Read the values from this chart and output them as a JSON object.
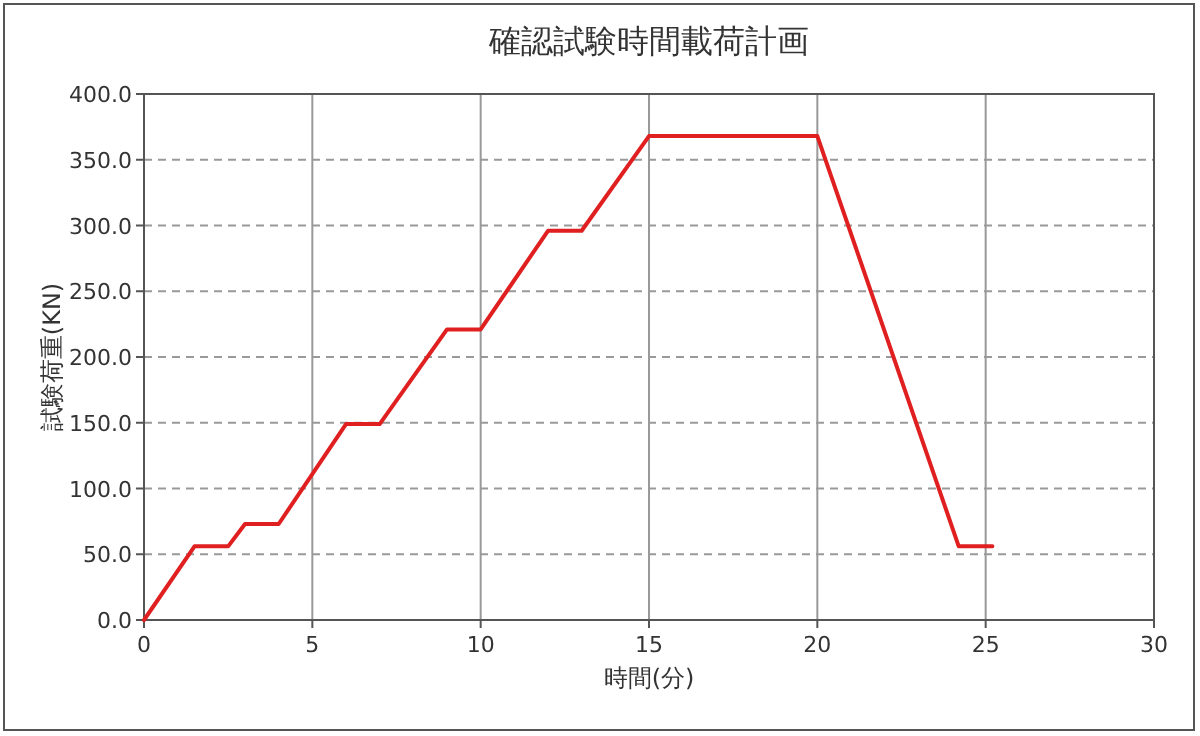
{
  "chart_data": {
    "type": "line",
    "title": "確認試験時間載荷計画",
    "xlabel": "時間(分)",
    "ylabel": "試験荷重(KN)",
    "x": [
      0,
      1.5,
      2.5,
      3,
      4,
      6,
      7,
      9,
      10,
      12,
      13,
      15,
      20,
      24.2,
      25.2
    ],
    "series": [
      {
        "color": "#e02020",
        "values": [
          0,
          56,
          56,
          73,
          73,
          149,
          149,
          221,
          221,
          296,
          296,
          368,
          368,
          56,
          56
        ]
      }
    ],
    "xlim": [
      0,
      30
    ],
    "xticks": [
      0,
      5,
      10,
      15,
      20,
      25,
      30
    ],
    "ylim": [
      0,
      400
    ],
    "yticks": [
      {
        "value": 0,
        "label": "0.0"
      },
      {
        "value": 50,
        "label": "50.0"
      },
      {
        "value": 100,
        "label": "100.0"
      },
      {
        "value": 150,
        "label": "150.0"
      },
      {
        "value": 200,
        "label": "200.0"
      },
      {
        "value": 250,
        "label": "250.0"
      },
      {
        "value": 300,
        "label": "300.0"
      },
      {
        "value": 350,
        "label": "350.0"
      },
      {
        "value": 400,
        "label": "400.0"
      }
    ],
    "grid": true,
    "marker": "none",
    "line_style": "solid"
  }
}
